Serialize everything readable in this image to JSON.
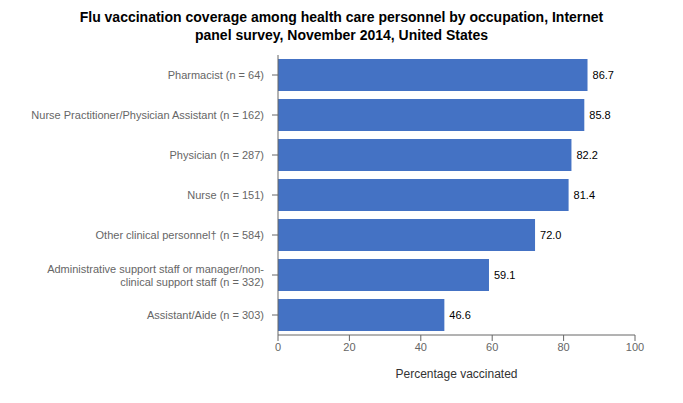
{
  "chart_data": {
    "type": "bar",
    "title": "Flu vaccination coverage among health care personnel by occupation, Internet\npanel survey, November 2014, United States",
    "orientation": "horizontal",
    "categories": [
      "Assistant/Aide (n = 303)",
      "Administrative support staff or manager/non-\nclinical support staff (n = 332)",
      "Other clinical personnel† (n = 584)",
      "Nurse (n = 151)",
      "Physician (n = 287)",
      "Nurse Practitioner/Physician Assistant (n = 162)",
      "Pharmacist (n = 64)"
    ],
    "values": [
      46.6,
      59.1,
      72.0,
      81.4,
      82.2,
      85.8,
      86.7
    ],
    "value_labels": [
      "46.6",
      "59.1",
      "72.0",
      "81.4",
      "82.2",
      "85.8",
      "86.7"
    ],
    "data_labels": true,
    "color": "#4472C4",
    "xlabel": "Percentage vaccinated",
    "xlim": [
      0,
      100
    ],
    "xticks": [
      0,
      20,
      40,
      60,
      80,
      100
    ],
    "grid": false
  }
}
